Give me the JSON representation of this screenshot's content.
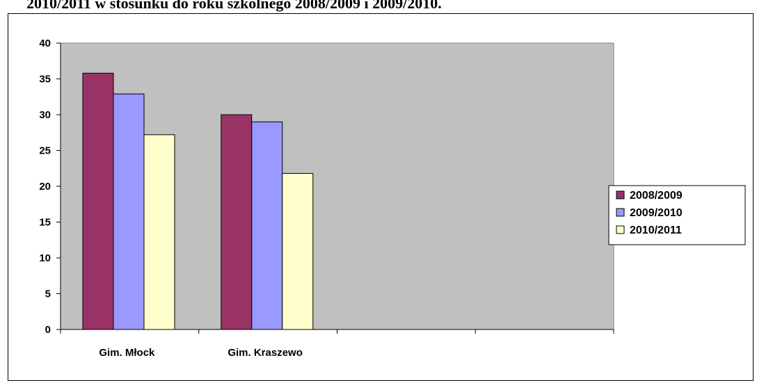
{
  "page": {
    "heading": "2010/2011 w stosunku do roku szkolnego 2008/2009 i 2009/2010."
  },
  "chart_data": {
    "type": "bar",
    "title": "",
    "xlabel": "",
    "ylabel": "",
    "categories": [
      "Gim. Młock",
      "Gim. Kraszewo",
      "",
      ""
    ],
    "series": [
      {
        "name": "2008/2009",
        "color": "#993366",
        "values": [
          35.8,
          30.0,
          null,
          null
        ]
      },
      {
        "name": "2009/2010",
        "color": "#9999ff",
        "values": [
          32.9,
          29.0,
          null,
          null
        ]
      },
      {
        "name": "2010/2011",
        "color": "#ffffcc",
        "values": [
          27.2,
          21.8,
          null,
          null
        ]
      }
    ],
    "ylim": [
      0,
      40
    ],
    "yticks": [
      0,
      5,
      10,
      15,
      20,
      25,
      30,
      35,
      40
    ],
    "plot_background": "#c0c0c0",
    "grid": false,
    "legend_position": "right"
  }
}
